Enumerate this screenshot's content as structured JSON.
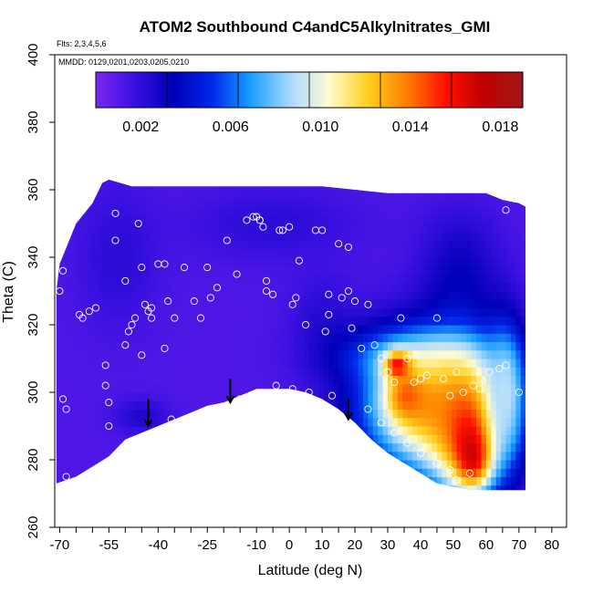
{
  "chart_data": {
    "type": "heatmap",
    "title": "ATOM2 Southbound C4andC5Alkylnitrates_GMI",
    "subtitle_flights": "Flts: 2,3,4,5,6",
    "subtitle_dates": "MMDD: 0129,0201,0203,0205,0210",
    "xlabel": "Latitude (deg N)",
    "ylabel": "Theta (C)",
    "xlim": [
      -70,
      80
    ],
    "ylim": [
      260,
      400
    ],
    "x_tick_labels": [
      "-70",
      "-55",
      "-40",
      "-25",
      "-10",
      "0",
      "10",
      "20",
      "30",
      "40",
      "50",
      "60",
      "70",
      "80"
    ],
    "x_tick_values": [
      -70,
      -55,
      -40,
      -25,
      -10,
      0,
      10,
      20,
      30,
      40,
      50,
      60,
      70,
      80
    ],
    "y_tick_labels": [
      "260",
      "280",
      "300",
      "320",
      "340",
      "360",
      "380",
      "400"
    ],
    "y_tick_values": [
      260,
      280,
      300,
      320,
      340,
      360,
      380,
      400
    ],
    "colorbar": {
      "min": 0.0,
      "max": 0.019,
      "tick_values": [
        0.002,
        0.006,
        0.01,
        0.014,
        0.018
      ],
      "tick_labels": [
        "0.002",
        "0.006",
        "0.010",
        "0.014",
        "0.018"
      ],
      "colors": [
        "#7b28f0",
        "#3a10e0",
        "#0000b8",
        "#0028e8",
        "#1aa0ff",
        "#a8d8ff",
        "#fffbd0",
        "#ffd020",
        "#ff8000",
        "#ff1000",
        "#c00000",
        "#a01818"
      ]
    },
    "field": {
      "background_value": 0.0012,
      "upper_boundary": [
        [
          -71,
          330
        ],
        [
          -70,
          338
        ],
        [
          -65,
          350
        ],
        [
          -60,
          356
        ],
        [
          -57,
          362
        ],
        [
          -55,
          363
        ],
        [
          -48,
          361
        ],
        [
          -40,
          361
        ],
        [
          -30,
          361
        ],
        [
          -25,
          361
        ],
        [
          -20,
          361
        ],
        [
          -10,
          361
        ],
        [
          0,
          361
        ],
        [
          10,
          361
        ],
        [
          20,
          360
        ],
        [
          30,
          359
        ],
        [
          40,
          359
        ],
        [
          50,
          359
        ],
        [
          60,
          359
        ],
        [
          65,
          357
        ],
        [
          70,
          356
        ],
        [
          72,
          355
        ]
      ],
      "lower_boundary": [
        [
          72,
          271
        ],
        [
          65,
          271
        ],
        [
          55,
          271
        ],
        [
          50,
          272
        ],
        [
          45,
          273
        ],
        [
          40,
          276
        ],
        [
          35,
          279
        ],
        [
          30,
          282
        ],
        [
          25,
          286
        ],
        [
          20,
          291
        ],
        [
          15,
          295
        ],
        [
          10,
          298
        ],
        [
          5,
          300
        ],
        [
          0,
          301
        ],
        [
          -5,
          301
        ],
        [
          -10,
          301
        ],
        [
          -15,
          299
        ],
        [
          -20,
          297
        ],
        [
          -25,
          296
        ],
        [
          -30,
          294
        ],
        [
          -35,
          292
        ],
        [
          -40,
          290
        ],
        [
          -45,
          288
        ],
        [
          -50,
          286
        ],
        [
          -55,
          281
        ],
        [
          -60,
          278
        ],
        [
          -65,
          275
        ],
        [
          -71,
          273
        ]
      ],
      "features": [
        {
          "center": [
            -52,
            340
          ],
          "radius": [
            12,
            20
          ],
          "value": 0.0022
        },
        {
          "center": [
            -5,
            350
          ],
          "radius": [
            25,
            10
          ],
          "value": 0.0022
        },
        {
          "center": [
            -45,
            293
          ],
          "radius": [
            8,
            5
          ],
          "value": 0.0026
        },
        {
          "center": [
            52,
            335
          ],
          "radius": [
            12,
            18
          ],
          "value": 0.0032
        },
        {
          "center": [
            10,
            322
          ],
          "radius": [
            10,
            14
          ],
          "value": 0.0022
        },
        {
          "center": [
            38,
            311
          ],
          "radius": [
            22,
            8
          ],
          "value": 0.0058
        },
        {
          "center": [
            42,
            296
          ],
          "radius": [
            20,
            20
          ],
          "value": 0.0125
        },
        {
          "center": [
            54,
            290
          ],
          "radius": [
            11,
            20
          ],
          "value": 0.015
        },
        {
          "center": [
            56,
            282
          ],
          "radius": [
            5,
            9
          ],
          "value": 0.0172
        },
        {
          "center": [
            36,
            299
          ],
          "radius": [
            6,
            7
          ],
          "value": 0.0145
        },
        {
          "center": [
            33,
            308
          ],
          "radius": [
            4,
            4
          ],
          "value": 0.016
        },
        {
          "center": [
            66,
            300
          ],
          "radius": [
            6,
            20
          ],
          "value": 0.009
        }
      ]
    },
    "observation_points": [
      [
        -70,
        330
      ],
      [
        -69,
        336
      ],
      [
        -69,
        298
      ],
      [
        -68,
        295
      ],
      [
        -68,
        275
      ],
      [
        -64,
        323
      ],
      [
        -63,
        322
      ],
      [
        -61,
        324
      ],
      [
        -59,
        325
      ],
      [
        -56,
        302
      ],
      [
        -56,
        308
      ],
      [
        -55,
        297
      ],
      [
        -55,
        290
      ],
      [
        -53,
        345
      ],
      [
        -53,
        353
      ],
      [
        -50,
        333
      ],
      [
        -50,
        314
      ],
      [
        -49,
        318
      ],
      [
        -48,
        320
      ],
      [
        -47,
        322
      ],
      [
        -46,
        350
      ],
      [
        -45,
        337
      ],
      [
        -45,
        311
      ],
      [
        -44,
        326
      ],
      [
        -43,
        324
      ],
      [
        -42,
        325
      ],
      [
        -42,
        322
      ],
      [
        -40,
        338
      ],
      [
        -38,
        338
      ],
      [
        -38,
        313
      ],
      [
        -37,
        327
      ],
      [
        -36,
        292
      ],
      [
        -35,
        322
      ],
      [
        -32,
        337
      ],
      [
        -29,
        327
      ],
      [
        -27,
        322
      ],
      [
        -25,
        337
      ],
      [
        -24,
        328
      ],
      [
        -22,
        331
      ],
      [
        -19,
        345
      ],
      [
        -16,
        335
      ],
      [
        -15,
        298
      ],
      [
        -13,
        351
      ],
      [
        -11,
        352
      ],
      [
        -10,
        352
      ],
      [
        -9,
        351
      ],
      [
        -9,
        351
      ],
      [
        -8,
        349
      ],
      [
        -7,
        333
      ],
      [
        -7,
        330
      ],
      [
        -5,
        329
      ],
      [
        -4,
        302
      ],
      [
        -3,
        348
      ],
      [
        -2,
        348
      ],
      [
        0,
        349
      ],
      [
        1,
        326
      ],
      [
        1,
        301
      ],
      [
        2,
        328
      ],
      [
        3,
        339
      ],
      [
        5,
        320
      ],
      [
        6,
        300
      ],
      [
        8,
        348
      ],
      [
        10,
        348
      ],
      [
        11,
        318
      ],
      [
        12,
        329
      ],
      [
        12,
        323
      ],
      [
        13,
        299
      ],
      [
        15,
        344
      ],
      [
        16,
        328
      ],
      [
        18,
        330
      ],
      [
        18,
        343
      ],
      [
        19,
        319
      ],
      [
        20,
        327
      ],
      [
        22,
        313
      ],
      [
        24,
        326
      ],
      [
        26,
        314
      ],
      [
        28,
        310
      ],
      [
        30,
        306
      ],
      [
        32,
        303
      ],
      [
        34,
        322
      ],
      [
        36,
        310
      ],
      [
        38,
        303
      ],
      [
        40,
        304
      ],
      [
        42,
        305
      ],
      [
        45,
        322
      ],
      [
        47,
        304
      ],
      [
        49,
        299
      ],
      [
        51,
        306
      ],
      [
        53,
        300
      ],
      [
        56,
        302
      ],
      [
        58,
        301
      ],
      [
        61,
        306
      ],
      [
        64,
        307
      ],
      [
        66,
        308
      ],
      [
        66,
        354
      ],
      [
        70,
        300
      ],
      [
        55,
        276
      ],
      [
        51,
        274
      ],
      [
        49,
        277
      ],
      [
        45,
        279
      ],
      [
        40,
        282
      ],
      [
        36,
        285
      ],
      [
        32,
        288
      ],
      [
        28,
        291
      ],
      [
        24,
        295
      ]
    ],
    "arrows": [
      {
        "x": -43,
        "y_top": 298,
        "y_bottom": 290
      },
      {
        "x": -18,
        "y_top": 304,
        "y_bottom": 297
      },
      {
        "x": 18,
        "y_top": 298,
        "y_bottom": 292
      }
    ]
  }
}
